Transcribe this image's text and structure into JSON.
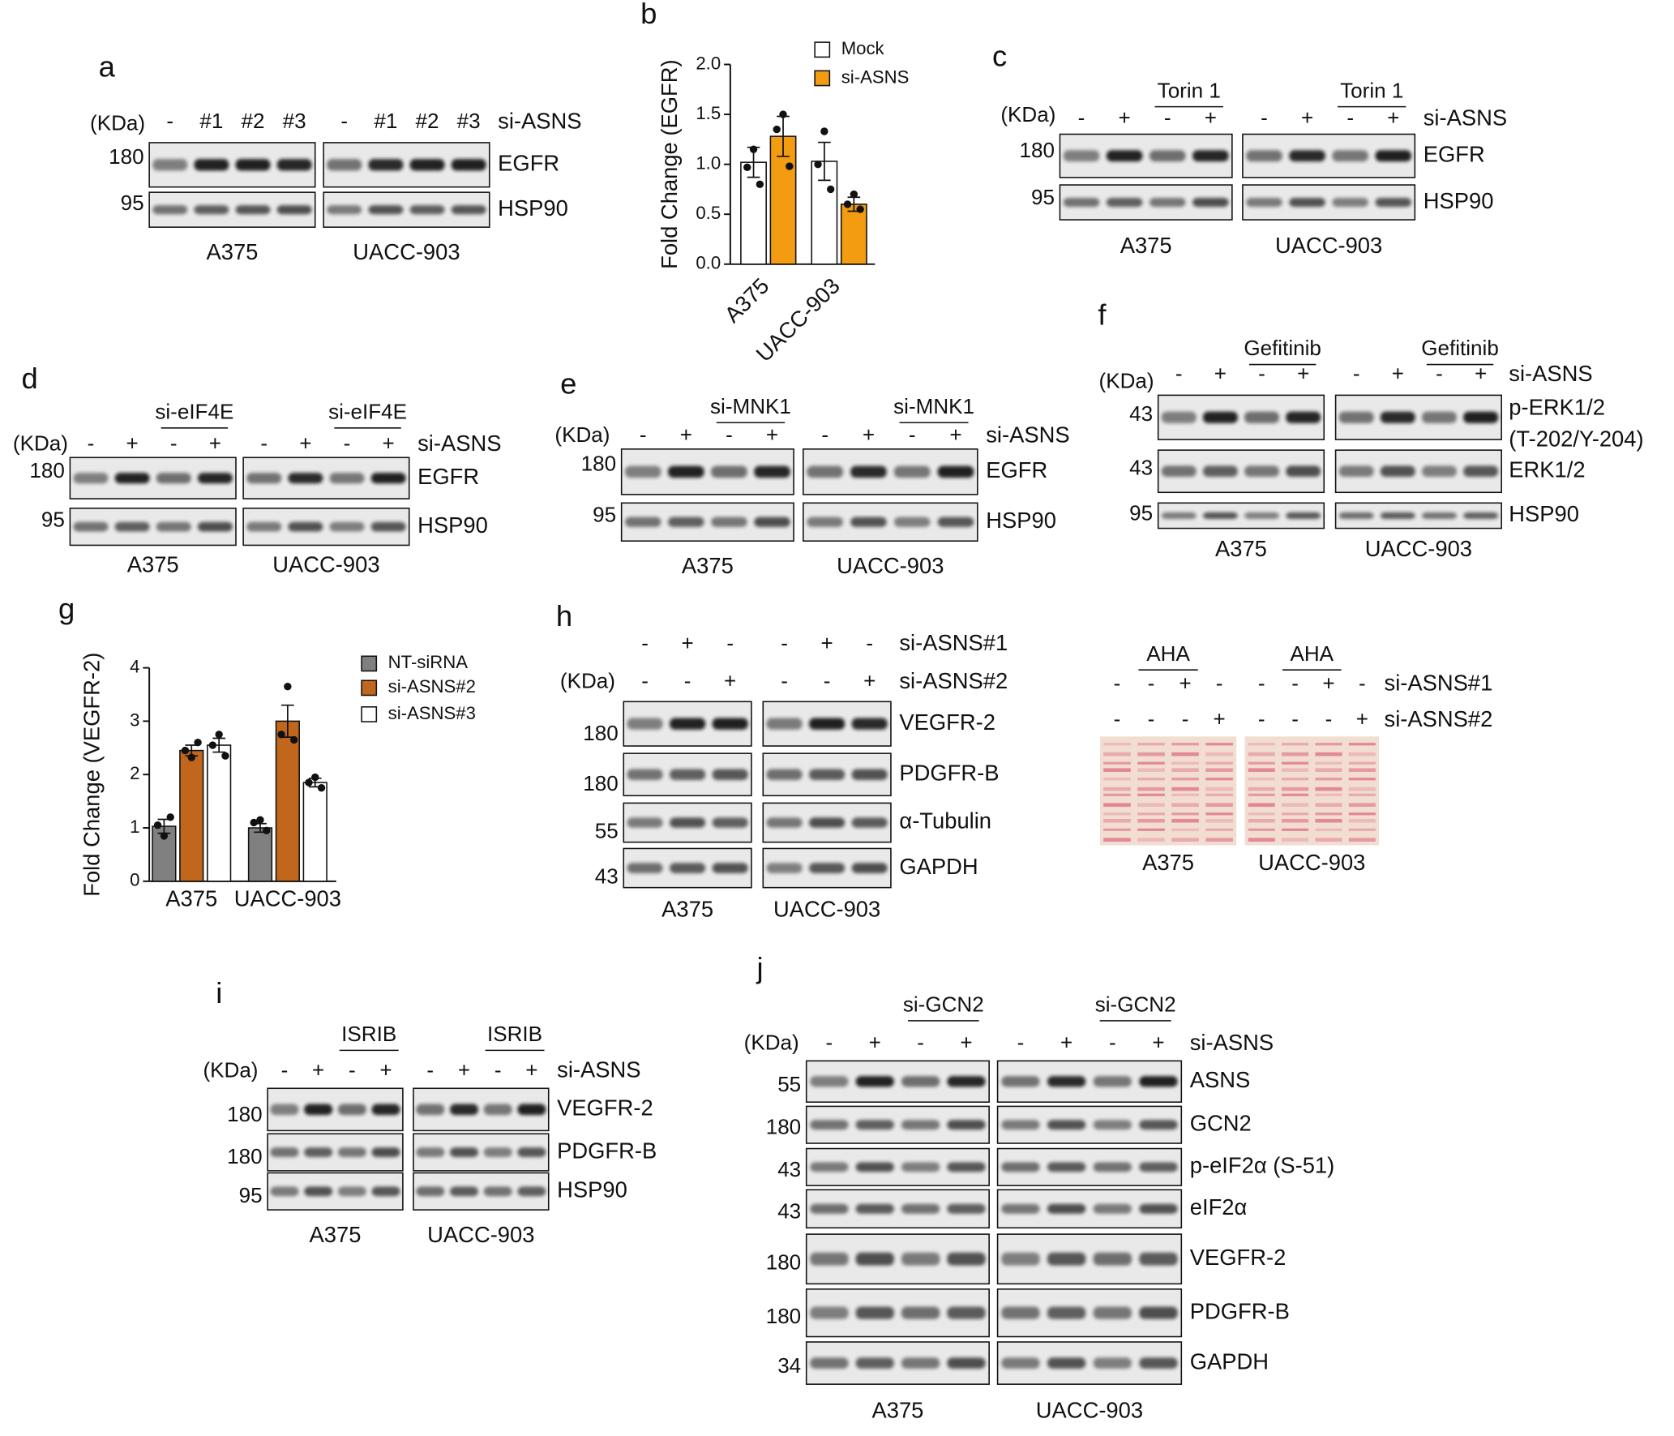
{
  "chart_data": [
    {
      "type": "bar",
      "label": "b",
      "ylabel": "Fold Change (EGFR)",
      "categories": [
        "A375",
        "UACC-903"
      ],
      "series": [
        {
          "name": "Mock",
          "color": "#ffffff",
          "values": [
            1.02,
            1.03
          ],
          "errors": [
            0.15,
            0.19
          ],
          "points": [
            [
              1.15,
              0.97,
              0.8
            ],
            [
              1.33,
              1.0,
              0.75
            ]
          ]
        },
        {
          "name": "si-ASNS",
          "color": "#f39c12",
          "values": [
            1.28,
            0.6
          ],
          "errors": [
            0.2,
            0.07
          ],
          "points": [
            [
              1.5,
              1.35,
              0.98
            ],
            [
              0.7,
              0.6,
              0.55
            ]
          ]
        }
      ],
      "ylim": [
        0,
        2
      ],
      "yticks": [
        {
          "value": 0,
          "label": "0.0"
        },
        0.5,
        {
          "value": 1,
          "label": "1.0"
        },
        1.5,
        {
          "value": 2,
          "label": "2.0"
        }
      ]
    },
    {
      "type": "bar",
      "label": "g",
      "ylabel": "Fold Change (VEGFR-2)",
      "categories": [
        "A375",
        "UACC-903"
      ],
      "series": [
        {
          "name": "NT-siRNA",
          "color": "#808080",
          "values": [
            1.03,
            1.0
          ],
          "errors": [
            0.13,
            0.08
          ],
          "points": [
            [
              0.85,
              1.05,
              1.2
            ],
            [
              1.15,
              1.1,
              0.95
            ]
          ]
        },
        {
          "name": "si-ASNS#2",
          "color": "#c0661d",
          "values": [
            2.45,
            3.0
          ],
          "errors": [
            0.1,
            0.3
          ],
          "points": [
            [
              2.32,
              2.45,
              2.6
            ],
            [
              3.65,
              2.75,
              2.65
            ]
          ]
        },
        {
          "name": "si-ASNS#3",
          "color": "#ffffff",
          "values": [
            2.55,
            1.85
          ],
          "errors": [
            0.13,
            0.08
          ],
          "points": [
            [
              2.75,
              2.55,
              2.35
            ],
            [
              1.95,
              1.85,
              1.75
            ]
          ]
        }
      ],
      "ylim": [
        0,
        4
      ],
      "yticks": [
        0,
        1,
        2,
        3,
        4
      ]
    }
  ],
  "blots": [
    {
      "letter": "a",
      "kda_label": "(KDa)",
      "headers": [],
      "treatments": [
        {
          "name": "si-ASNS",
          "lanes": [
            "-",
            "#1",
            "#2",
            "#3",
            "-",
            "#1",
            "#2",
            "#3"
          ]
        }
      ],
      "rows": [
        {
          "protein": "EGFR",
          "kda": 180
        },
        {
          "protein": "HSP90",
          "kda": 95
        }
      ],
      "cell_lines": [
        "A375",
        "UACC-903"
      ]
    },
    {
      "letter": "c",
      "kda_label": "(KDa)",
      "headers": [
        "Torin 1",
        "Torin 1"
      ],
      "treatments": [
        {
          "name": "si-ASNS",
          "lanes": [
            "-",
            "+",
            "-",
            "+",
            "-",
            "+",
            "-",
            "+"
          ]
        }
      ],
      "rows": [
        {
          "protein": "EGFR",
          "kda": 180
        },
        {
          "protein": "HSP90",
          "kda": 95
        }
      ],
      "cell_lines": [
        "A375",
        "UACC-903"
      ]
    },
    {
      "letter": "d",
      "kda_label": "(KDa)",
      "headers": [
        "si-eIF4E",
        "si-eIF4E"
      ],
      "treatments": [
        {
          "name": "si-ASNS",
          "lanes": [
            "-",
            "+",
            "-",
            "+",
            "-",
            "+",
            "-",
            "+"
          ]
        }
      ],
      "rows": [
        {
          "protein": "EGFR",
          "kda": 180
        },
        {
          "protein": "HSP90",
          "kda": 95
        }
      ],
      "cell_lines": [
        "A375",
        "UACC-903"
      ]
    },
    {
      "letter": "e",
      "kda_label": "(KDa)",
      "headers": [
        "si-MNK1",
        "si-MNK1"
      ],
      "treatments": [
        {
          "name": "si-ASNS",
          "lanes": [
            "-",
            "+",
            "-",
            "+",
            "-",
            "+",
            "-",
            "+"
          ]
        }
      ],
      "rows": [
        {
          "protein": "EGFR",
          "kda": 180
        },
        {
          "protein": "HSP90",
          "kda": 95
        }
      ],
      "cell_lines": [
        "A375",
        "UACC-903"
      ]
    },
    {
      "letter": "f",
      "kda_label": "(KDa)",
      "headers": [
        "Gefitinib",
        "Gefitinib"
      ],
      "treatments": [
        {
          "name": "si-ASNS",
          "lanes": [
            "-",
            "+",
            "-",
            "+",
            "-",
            "+",
            "-",
            "+"
          ]
        }
      ],
      "rows": [
        {
          "protein": "p-ERK1/2",
          "note": "(T-202/Y-204)",
          "kda": 43
        },
        {
          "protein": "ERK1/2",
          "kda": 43
        },
        {
          "protein": "HSP90",
          "kda": 95
        }
      ],
      "cell_lines": [
        "A375",
        "UACC-903"
      ]
    },
    {
      "letter": "h",
      "kda_label": "(KDa)",
      "headers": [],
      "treatments": [
        {
          "name": "si-ASNS#1",
          "lanes": [
            "-",
            "+",
            "-",
            "-",
            "+",
            "-"
          ]
        },
        {
          "name": "si-ASNS#2",
          "lanes": [
            "-",
            "-",
            "+",
            "-",
            "-",
            "+"
          ]
        }
      ],
      "rows": [
        {
          "protein": "VEGFR-2",
          "kda": 180
        },
        {
          "protein": "PDGFR-B",
          "kda": 180
        },
        {
          "protein": "α-Tubulin",
          "kda": 55
        },
        {
          "protein": "GAPDH",
          "kda": 43
        }
      ],
      "cell_lines": [
        "A375",
        "UACC-903"
      ]
    },
    {
      "headers": [
        "AHA",
        "AHA"
      ],
      "treatments": [
        {
          "name": "si-ASNS#1",
          "lanes": [
            "-",
            "-",
            "+",
            "-",
            "-",
            "-",
            "+",
            "-"
          ]
        },
        {
          "name": "si-ASNS#2",
          "lanes": [
            "-",
            "-",
            "-",
            "+",
            "-",
            "-",
            "-",
            "+"
          ]
        }
      ],
      "cell_lines": [
        "A375",
        "UACC-903"
      ]
    },
    {
      "letter": "i",
      "kda_label": "(KDa)",
      "headers": [
        "ISRIB",
        "ISRIB"
      ],
      "treatments": [
        {
          "name": "si-ASNS",
          "lanes": [
            "-",
            "+",
            "-",
            "+",
            "-",
            "+",
            "-",
            "+"
          ]
        }
      ],
      "rows": [
        {
          "protein": "VEGFR-2",
          "kda": 180
        },
        {
          "protein": "PDGFR-B",
          "kda": 180
        },
        {
          "protein": "HSP90",
          "kda": 95
        }
      ],
      "cell_lines": [
        "A375",
        "UACC-903"
      ]
    },
    {
      "letter": "j",
      "kda_label": "(KDa)",
      "headers": [
        "si-GCN2",
        "si-GCN2"
      ],
      "treatments": [
        {
          "name": "si-ASNS",
          "lanes": [
            "-",
            "+",
            "-",
            "+",
            "-",
            "+",
            "-",
            "+"
          ]
        }
      ],
      "rows": [
        {
          "protein": "ASNS",
          "kda": 55
        },
        {
          "protein": "GCN2",
          "kda": 180
        },
        {
          "protein": "p-eIF2α (S-51)",
          "kda": 43
        },
        {
          "protein": "eIF2α",
          "kda": 43
        },
        {
          "protein": "VEGFR-2",
          "kda": 180
        },
        {
          "protein": "PDGFR-B",
          "kda": 180
        },
        {
          "protein": "GAPDH",
          "kda": 34
        }
      ],
      "cell_lines": [
        "A375",
        "UACC-903"
      ]
    }
  ]
}
